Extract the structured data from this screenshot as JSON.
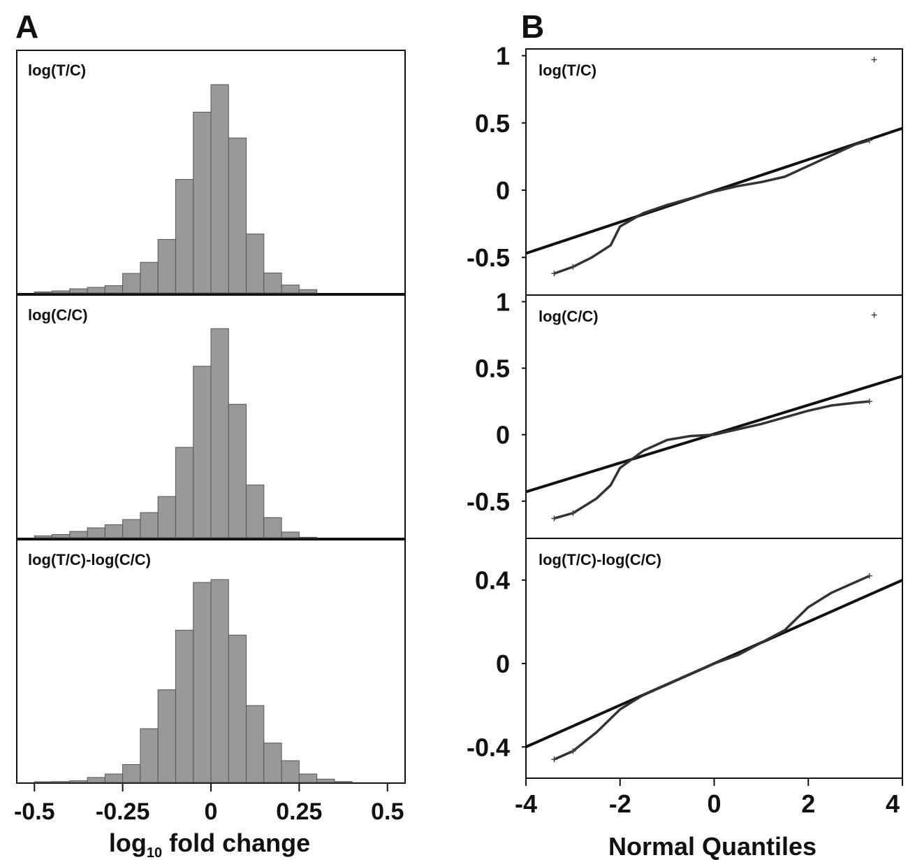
{
  "figure": {
    "panel_a_letter": "A",
    "panel_b_letter": "B",
    "panel_a_xlabel_main": "log",
    "panel_a_xlabel_sub": "10",
    "panel_a_xlabel_rest": " fold change",
    "panel_b_xlabel": "Normal Quantiles"
  },
  "chart_data": [
    {
      "type": "bar",
      "panel": "A",
      "title": "log(T/C)",
      "xlabel": "log10 fold change",
      "xlim": [
        -0.55,
        0.55
      ],
      "x_ticks": [
        "-0.5",
        "-0.25",
        "0",
        "0.25",
        "0.5"
      ],
      "bin_width": 0.05,
      "bin_centers": [
        -0.475,
        -0.425,
        -0.375,
        -0.325,
        -0.275,
        -0.225,
        -0.175,
        -0.125,
        -0.075,
        -0.025,
        0.025,
        0.075,
        0.125,
        0.175,
        0.225,
        0.275
      ],
      "values": [
        0.005,
        0.01,
        0.02,
        0.027,
        0.035,
        0.094,
        0.147,
        0.257,
        0.545,
        0.868,
        1.0,
        0.744,
        0.283,
        0.096,
        0.038,
        0.016
      ]
    },
    {
      "type": "bar",
      "panel": "A",
      "title": "log(C/C)",
      "xlabel": "log10 fold change",
      "xlim": [
        -0.55,
        0.55
      ],
      "x_ticks": [
        "-0.5",
        "-0.25",
        "0",
        "0.25",
        "0.5"
      ],
      "bin_width": 0.05,
      "bin_centers": [
        -0.475,
        -0.425,
        -0.375,
        -0.325,
        -0.275,
        -0.225,
        -0.175,
        -0.125,
        -0.075,
        -0.025,
        0.025,
        0.075,
        0.125,
        0.175,
        0.225,
        0.275
      ],
      "values": [
        0.009,
        0.015,
        0.03,
        0.047,
        0.062,
        0.087,
        0.12,
        0.197,
        0.432,
        0.82,
        1.0,
        0.638,
        0.252,
        0.096,
        0.027,
        0.002
      ]
    },
    {
      "type": "bar",
      "panel": "A",
      "title": "log(T/C)-log(C/C)",
      "xlabel": "log10 fold change",
      "xlim": [
        -0.55,
        0.55
      ],
      "x_ticks": [
        "-0.5",
        "-0.25",
        "0",
        "0.25",
        "0.5"
      ],
      "bin_width": 0.05,
      "bin_centers": [
        -0.475,
        -0.425,
        -0.375,
        -0.325,
        -0.275,
        -0.225,
        -0.175,
        -0.125,
        -0.075,
        -0.025,
        0.025,
        0.075,
        0.125,
        0.175,
        0.225,
        0.275,
        0.325,
        0.375
      ],
      "values": [
        0.003,
        0.004,
        0.008,
        0.024,
        0.041,
        0.087,
        0.262,
        0.452,
        0.743,
        0.976,
        0.99,
        0.719,
        0.375,
        0.192,
        0.106,
        0.041,
        0.016,
        0.004
      ]
    },
    {
      "type": "scatter",
      "panel": "B",
      "title": "log(T/C)",
      "xlabel": "Normal Quantiles",
      "xlim": [
        -4,
        4
      ],
      "ylim": [
        -0.78,
        1.05
      ],
      "y_ticks": [
        1,
        0.5,
        0,
        -0.5
      ],
      "y_tick_labels": [
        "1",
        "0.5",
        "0",
        "-0.5"
      ],
      "reference_line": [
        [
          -4,
          -0.47
        ],
        [
          4,
          0.46
        ]
      ],
      "quantile_curve": [
        [
          -3.4,
          -0.62
        ],
        [
          -3.0,
          -0.57
        ],
        [
          -2.6,
          -0.5
        ],
        [
          -2.2,
          -0.41
        ],
        [
          -2.0,
          -0.27
        ],
        [
          -1.5,
          -0.17
        ],
        [
          -1.0,
          -0.11
        ],
        [
          -0.5,
          -0.06
        ],
        [
          0,
          -0.01
        ],
        [
          0.5,
          0.03
        ],
        [
          1.0,
          0.06
        ],
        [
          1.5,
          0.1
        ],
        [
          2.0,
          0.18
        ],
        [
          2.5,
          0.26
        ],
        [
          3.0,
          0.34
        ],
        [
          3.3,
          0.37
        ]
      ],
      "outliers": [
        [
          3.4,
          0.97
        ]
      ]
    },
    {
      "type": "scatter",
      "panel": "B",
      "title": "log(C/C)",
      "xlabel": "Normal Quantiles",
      "xlim": [
        -4,
        4
      ],
      "ylim": [
        -0.78,
        1.05
      ],
      "y_ticks": [
        1,
        0.5,
        0,
        -0.5
      ],
      "y_tick_labels": [
        "1",
        "0.5",
        "0",
        "-0.5"
      ],
      "reference_line": [
        [
          -4,
          -0.43
        ],
        [
          4,
          0.44
        ]
      ],
      "quantile_curve": [
        [
          -3.4,
          -0.63
        ],
        [
          -3.0,
          -0.59
        ],
        [
          -2.5,
          -0.48
        ],
        [
          -2.2,
          -0.38
        ],
        [
          -2.0,
          -0.25
        ],
        [
          -1.5,
          -0.12
        ],
        [
          -1.0,
          -0.04
        ],
        [
          -0.5,
          -0.01
        ],
        [
          0,
          0.0
        ],
        [
          0.5,
          0.04
        ],
        [
          1.0,
          0.08
        ],
        [
          1.5,
          0.13
        ],
        [
          2.0,
          0.18
        ],
        [
          2.5,
          0.22
        ],
        [
          3.0,
          0.24
        ],
        [
          3.3,
          0.25
        ]
      ],
      "outliers": [
        [
          3.4,
          0.9
        ]
      ]
    },
    {
      "type": "scatter",
      "panel": "B",
      "title": "log(T/C)-log(C/C)",
      "xlabel": "Normal Quantiles",
      "x_ticks": [
        "-4",
        "-2",
        "0",
        "2",
        "4"
      ],
      "xlim": [
        -4,
        4
      ],
      "ylim": [
        -0.55,
        0.6
      ],
      "y_ticks": [
        0.4,
        0,
        -0.4
      ],
      "y_tick_labels": [
        "0.4",
        "0",
        "-0.4"
      ],
      "reference_line": [
        [
          -4,
          -0.4
        ],
        [
          4,
          0.4
        ]
      ],
      "quantile_curve": [
        [
          -3.4,
          -0.46
        ],
        [
          -3.0,
          -0.42
        ],
        [
          -2.5,
          -0.33
        ],
        [
          -2.0,
          -0.22
        ],
        [
          -1.5,
          -0.15
        ],
        [
          -1.0,
          -0.1
        ],
        [
          -0.5,
          -0.05
        ],
        [
          0,
          0.0
        ],
        [
          0.5,
          0.04
        ],
        [
          1.0,
          0.1
        ],
        [
          1.5,
          0.16
        ],
        [
          2.0,
          0.27
        ],
        [
          2.5,
          0.34
        ],
        [
          3.0,
          0.39
        ],
        [
          3.3,
          0.42
        ]
      ],
      "outliers": []
    }
  ]
}
